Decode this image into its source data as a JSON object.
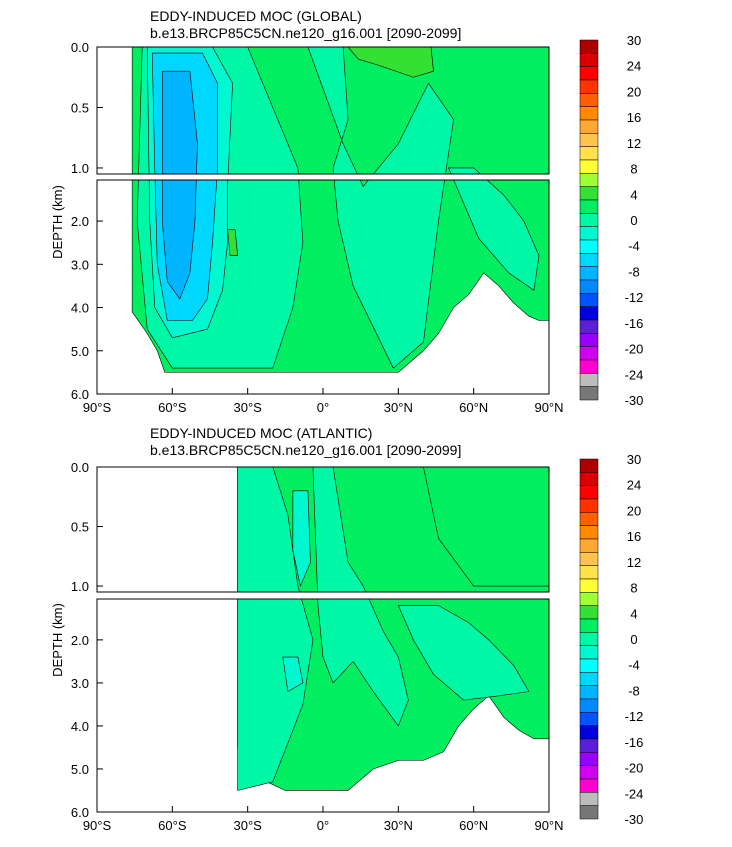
{
  "chart_data": [
    {
      "type": "contour",
      "title": "EDDY-INDUCED MOC (GLOBAL)",
      "subtitle": "b.e13.BRCP85C5CN.ne120_g16.001 [2090-2099]",
      "ylabel": "DEPTH (km)",
      "x_ticks": [
        "90°S",
        "60°S",
        "30°S",
        "0°",
        "30°N",
        "60°N",
        "90°N"
      ],
      "x_tick_values": [
        -90,
        -60,
        -30,
        0,
        30,
        60,
        90
      ],
      "upper_y_ticks": [
        "0.0",
        "0.5",
        "1.0"
      ],
      "upper_y_tick_values": [
        0,
        0.5,
        1.0
      ],
      "lower_y_ticks": [
        "2.0",
        "3.0",
        "4.0",
        "5.0",
        "6.0"
      ],
      "lower_y_tick_values": [
        2,
        3,
        4,
        5,
        6
      ],
      "xlim": [
        -90,
        90
      ],
      "upper_ylim": [
        0,
        1.05
      ],
      "lower_ylim": [
        1.05,
        6.0
      ],
      "features": [
        {
          "description": "strong negative cell",
          "lat_min": -66,
          "lat_max": -40,
          "depth_top": 0.1,
          "depth_bottom": 4.8,
          "value": -14
        },
        {
          "description": "weak positive surface cell",
          "lat_min": 10,
          "lat_max": 43,
          "depth_top": 0.0,
          "depth_bottom": 0.3,
          "value": 4
        }
      ],
      "colorbar": {
        "labels": [
          "30",
          "24",
          "20",
          "16",
          "12",
          "8",
          "4",
          "0",
          "-4",
          "-8",
          "-12",
          "-16",
          "-20",
          "-24",
          "-30"
        ],
        "colors": [
          "#ad0000",
          "#db0000",
          "#ff0000",
          "#ff3300",
          "#ff5f00",
          "#ff8a00",
          "#ffa733",
          "#ffc44c",
          "#ffe24c",
          "#ffff33",
          "#9fff33",
          "#33e033",
          "#00ee5f",
          "#00f7a6",
          "#00f7d0",
          "#00ffff",
          "#00d7ff",
          "#00b4ff",
          "#008aff",
          "#0055ff",
          "#0000dd",
          "#5a1fd6",
          "#9a00ff",
          "#d000f0",
          "#ff00d0",
          "#bcbcbc",
          "#777777"
        ]
      }
    },
    {
      "type": "contour",
      "title": "EDDY-INDUCED MOC (ATLANTIC)",
      "subtitle": "b.e13.BRCP85C5CN.ne120_g16.001 [2090-2099]",
      "ylabel": "DEPTH (km)",
      "x_ticks": [
        "90°S",
        "60°S",
        "30°S",
        "0°",
        "30°N",
        "60°N",
        "90°N"
      ],
      "x_tick_values": [
        -90,
        -60,
        -30,
        0,
        30,
        60,
        90
      ],
      "upper_y_ticks": [
        "0.0",
        "0.5",
        "1.0"
      ],
      "upper_y_tick_values": [
        0,
        0.5,
        1.0
      ],
      "lower_y_ticks": [
        "2.0",
        "3.0",
        "4.0",
        "5.0",
        "6.0"
      ],
      "lower_y_tick_values": [
        2,
        3,
        4,
        5,
        6
      ],
      "xlim": [
        -90,
        90
      ],
      "upper_ylim": [
        0,
        1.05
      ],
      "lower_ylim": [
        1.05,
        6.0
      ],
      "features": [
        {
          "description": "weak negative band",
          "lat_min": -34,
          "lat_max": 60,
          "depth_top": 0.0,
          "depth_bottom": 5.5,
          "value": -2
        },
        {
          "description": "weak positive region",
          "lat_min": 30,
          "lat_max": 90,
          "depth_top": 0.0,
          "depth_bottom": 1.0,
          "value": 1
        }
      ],
      "colorbar": {
        "labels": [
          "30",
          "24",
          "20",
          "16",
          "12",
          "8",
          "4",
          "0",
          "-4",
          "-8",
          "-12",
          "-16",
          "-20",
          "-24",
          "-30"
        ],
        "colors": [
          "#ad0000",
          "#db0000",
          "#ff0000",
          "#ff3300",
          "#ff5f00",
          "#ff8a00",
          "#ffa733",
          "#ffc44c",
          "#ffe24c",
          "#ffff33",
          "#9fff33",
          "#33e033",
          "#00ee5f",
          "#00f7a6",
          "#00f7d0",
          "#00ffff",
          "#00d7ff",
          "#00b4ff",
          "#008aff",
          "#0055ff",
          "#0000dd",
          "#5a1fd6",
          "#9a00ff",
          "#d000f0",
          "#ff00d0",
          "#bcbcbc",
          "#777777"
        ]
      }
    }
  ],
  "colors": {
    "green": "#00ee5f",
    "teal": "#00f7a6",
    "cyan": "#00f7d0",
    "lightblue": "#00d7ff",
    "blue": "#00b4ff",
    "lime": "#33e033",
    "background": "#ffffff"
  }
}
